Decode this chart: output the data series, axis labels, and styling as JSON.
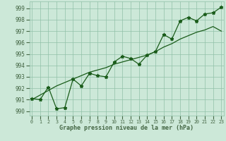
{
  "x": [
    0,
    1,
    2,
    3,
    4,
    5,
    6,
    7,
    8,
    9,
    10,
    11,
    12,
    13,
    14,
    15,
    16,
    17,
    18,
    19,
    20,
    21,
    22,
    23
  ],
  "y_main": [
    991.1,
    991.0,
    992.1,
    990.2,
    990.3,
    992.8,
    992.2,
    993.3,
    993.1,
    993.0,
    994.3,
    994.8,
    994.6,
    994.1,
    994.9,
    995.2,
    996.7,
    996.3,
    997.9,
    998.2,
    997.9,
    998.5,
    998.6,
    999.1
  ],
  "y_smooth": [
    991.0,
    991.4,
    991.8,
    992.2,
    992.5,
    992.8,
    993.1,
    993.4,
    993.6,
    993.8,
    994.1,
    994.3,
    994.5,
    994.7,
    994.9,
    995.2,
    995.6,
    995.9,
    996.3,
    996.6,
    996.9,
    997.1,
    997.4,
    997.0
  ],
  "y_min": 989.6,
  "y_max": 999.6,
  "x_min": -0.3,
  "x_max": 23.3,
  "yticks": [
    990,
    991,
    992,
    993,
    994,
    995,
    996,
    997,
    998,
    999
  ],
  "xtick_labels": [
    "0",
    "1",
    "2",
    "3",
    "4",
    "5",
    "6",
    "7",
    "8",
    "9",
    "10",
    "11",
    "12",
    "13",
    "14",
    "15",
    "16",
    "17",
    "18",
    "19",
    "20",
    "21",
    "22",
    "23"
  ],
  "xlabel": "Graphe pression niveau de la mer (hPa)",
  "line_color": "#1a5c1a",
  "marker": "*",
  "bg_color": "#cce8d8",
  "grid_color": "#90c0a8",
  "axis_color": "#446644"
}
